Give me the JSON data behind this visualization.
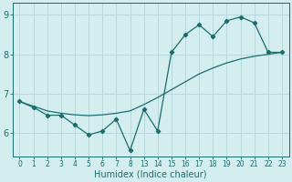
{
  "xlabel": "Humidex (Indice chaleur)",
  "bg_color": "#d4eef0",
  "line_color": "#1a6e6a",
  "grid_color": "#b8d8dc",
  "line1_idx": [
    0,
    1,
    2,
    3,
    4,
    5,
    6,
    7,
    8,
    9,
    10,
    11,
    12,
    13,
    14,
    15,
    16,
    17,
    18,
    19
  ],
  "line1_y": [
    6.8,
    6.65,
    6.45,
    6.45,
    6.2,
    5.95,
    6.05,
    6.35,
    5.55,
    6.6,
    6.05,
    8.05,
    8.5,
    8.75,
    8.45,
    8.85,
    8.95,
    8.8,
    8.05,
    8.05
  ],
  "line2_idx": [
    0,
    1,
    2,
    3,
    4,
    5,
    6,
    7,
    8,
    9,
    10,
    11,
    12,
    13,
    14,
    15,
    16,
    17,
    18,
    19
  ],
  "line2_y": [
    6.8,
    6.68,
    6.56,
    6.5,
    6.46,
    6.44,
    6.46,
    6.5,
    6.56,
    6.72,
    6.9,
    7.1,
    7.3,
    7.5,
    7.65,
    7.78,
    7.88,
    7.95,
    8.0,
    8.05
  ],
  "xtick_idx": [
    0,
    1,
    2,
    3,
    4,
    5,
    6,
    7,
    8,
    9,
    10,
    11,
    12,
    13,
    14,
    15,
    16,
    17,
    18,
    19
  ],
  "xtick_labels": [
    "0",
    "1",
    "2",
    "3",
    "4",
    "5",
    "6",
    "7",
    "8",
    "13",
    "14",
    "15",
    "16",
    "17",
    "18",
    "19",
    "20",
    "21",
    "22",
    "23"
  ],
  "yticks": [
    6,
    7,
    8,
    9
  ],
  "ylim": [
    5.4,
    9.3
  ],
  "xlim": [
    -0.5,
    19.5
  ]
}
